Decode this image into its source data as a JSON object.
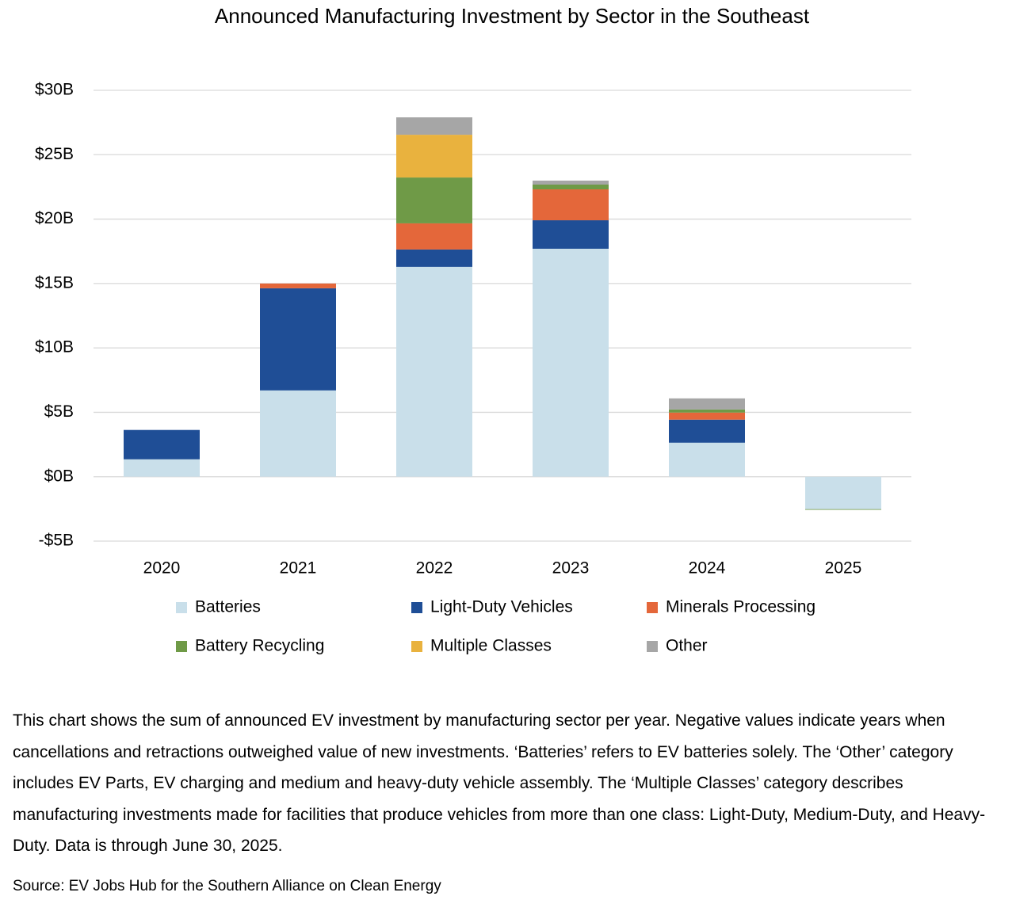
{
  "chart_data": {
    "type": "bar",
    "stacked": true,
    "title": "Announced Manufacturing Investment by Sector in the Southeast",
    "categories": [
      "2020",
      "2021",
      "2022",
      "2023",
      "2024",
      "2025"
    ],
    "series": [
      {
        "name": "Batteries",
        "color": "#c9dfea",
        "values": [
          1.35,
          6.7,
          16.29,
          17.7,
          2.64,
          -2.52
        ]
      },
      {
        "name": "Light-Duty Vehicles",
        "color": "#1f4e96",
        "values": [
          2.28,
          7.93,
          1.35,
          2.21,
          1.79,
          0
        ]
      },
      {
        "name": "Minerals Processing",
        "color": "#e4673a",
        "values": [
          0,
          0.37,
          2.03,
          2.4,
          0.55,
          0
        ]
      },
      {
        "name": "Battery Recycling",
        "color": "#6f9a47",
        "values": [
          0,
          0,
          3.56,
          0.37,
          0.24,
          -0.05
        ]
      },
      {
        "name": "Multiple Classes",
        "color": "#e9b23e",
        "values": [
          0,
          0,
          3.32,
          0,
          0,
          0
        ]
      },
      {
        "name": "Other",
        "color": "#a6a6a6",
        "values": [
          0,
          0,
          1.35,
          0.31,
          0.86,
          0
        ]
      }
    ],
    "ylim": [
      -5,
      30
    ],
    "yticks": [
      {
        "value": -5,
        "label": "-$5B"
      },
      {
        "value": 0,
        "label": "$0B"
      },
      {
        "value": 5,
        "label": "$5B"
      },
      {
        "value": 10,
        "label": "$10B"
      },
      {
        "value": 15,
        "label": "$15B"
      },
      {
        "value": 20,
        "label": "$20B"
      },
      {
        "value": 25,
        "label": "$25B"
      },
      {
        "value": 30,
        "label": "$30B"
      }
    ],
    "grid": true,
    "note": "This chart shows the sum of announced EV investment by manufacturing sector per year. Negative values indicate years when cancellations and retractions outweighed value of new investments. ‘Batteries’ refers to EV batteries solely. The ‘Other’ category includes EV Parts, EV charging and medium and heavy-duty vehicle assembly. The ‘Multiple Classes’ category describes manufacturing investments made for facilities that produce vehicles from more than one class: Light-Duty, Medium-Duty, and Heavy-Duty. Data is through June 30, 2025.",
    "source": "Source: EV Jobs Hub for the Southern Alliance on Clean Energy"
  }
}
